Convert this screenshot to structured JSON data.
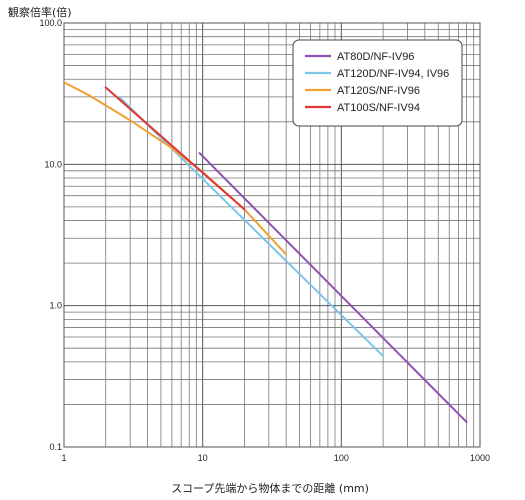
{
  "chart_data": {
    "type": "line",
    "title": "",
    "ylabel": "観察倍率(倍)",
    "xlabel": "スコープ先端から物体までの距離 (mm)",
    "x_scale": "log",
    "y_scale": "log",
    "xlim": [
      1,
      1000
    ],
    "ylim": [
      0.1,
      100
    ],
    "x_ticks": [
      {
        "value": 1,
        "label": "1"
      },
      {
        "value": 10,
        "label": "10"
      },
      {
        "value": 100,
        "label": "100"
      },
      {
        "value": 1000,
        "label": "1000"
      }
    ],
    "y_ticks": [
      {
        "value": 0.1,
        "label": "0.1"
      },
      {
        "value": 1,
        "label": "1.0"
      },
      {
        "value": 10,
        "label": "10.0"
      },
      {
        "value": 100,
        "label": "100.0"
      }
    ],
    "grid": true,
    "legend_position": "top-right",
    "series": [
      {
        "name": "AT80D/NF-IV96",
        "color": "#8e52b0",
        "x": [
          9.5,
          800
        ],
        "y": [
          12.0,
          0.15
        ]
      },
      {
        "name": "AT120D/NF-IV94, IV96",
        "color": "#7cc6e8",
        "x": [
          2.5,
          200
        ],
        "y": [
          30.0,
          0.44
        ]
      },
      {
        "name": "AT120S/NF-IV96",
        "color": "#f0a030",
        "x": [
          1,
          1.5,
          3,
          6,
          10,
          20,
          40
        ],
        "y": [
          38.0,
          31.0,
          20.5,
          13.0,
          8.8,
          4.8,
          2.3
        ]
      },
      {
        "name": "AT100S/NF-IV94",
        "color": "#e03535",
        "x": [
          2,
          20
        ],
        "y": [
          35.0,
          4.8
        ]
      }
    ]
  }
}
